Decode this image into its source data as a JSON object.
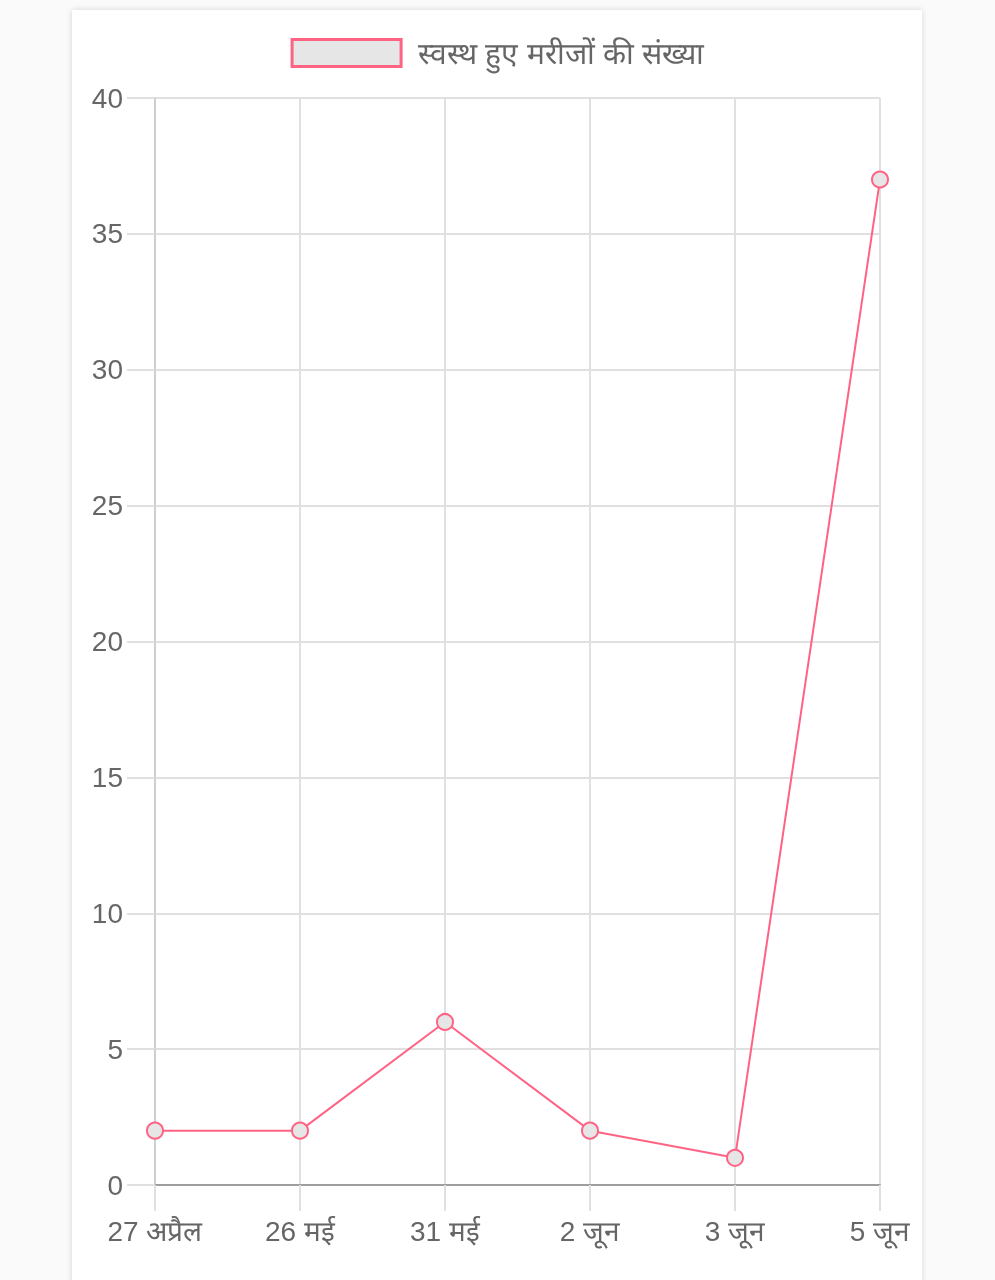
{
  "chart_data": {
    "type": "line",
    "categories": [
      "27 अप्रैल",
      "26 मई",
      "31 मई",
      "2 जून",
      "3 जून",
      "5 जून"
    ],
    "series": [
      {
        "name": "स्वस्थ हुए मरीजों की संख्या",
        "color": "#ff6384",
        "values": [
          2,
          2,
          6,
          2,
          1,
          37
        ]
      }
    ],
    "ylim": [
      0,
      40
    ],
    "yticks": [
      0,
      5,
      10,
      15,
      20,
      25,
      30,
      35,
      40
    ],
    "grid": true,
    "legend": "top",
    "marker": "circle",
    "line_style": "solid"
  }
}
